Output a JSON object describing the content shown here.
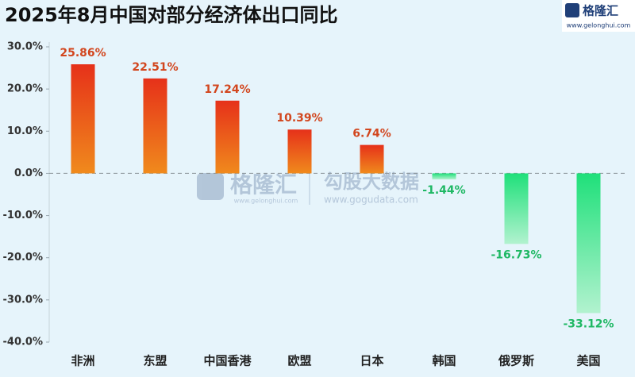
{
  "chart_data": {
    "type": "bar",
    "title": "2025年8月中国对部分经济体出口同比",
    "logo": {
      "name": "格隆汇",
      "url": "www.gelonghui.com"
    },
    "watermarks": [
      {
        "name": "格隆汇",
        "url": "www.gelonghui.com"
      },
      {
        "name": "勾股大数据",
        "url": "www.gogudata.com"
      }
    ],
    "categories": [
      "非洲",
      "东盟",
      "中国香港",
      "欧盟",
      "日本",
      "韩国",
      "俄罗斯",
      "美国"
    ],
    "values": [
      25.86,
      22.51,
      17.24,
      10.39,
      6.74,
      -1.44,
      -16.73,
      -33.12
    ],
    "value_labels": [
      "25.86%",
      "22.51%",
      "17.24%",
      "10.39%",
      "6.74%",
      "-1.44%",
      "-16.73%",
      "-33.12%"
    ],
    "positive_colors": [
      "#e6311a",
      "#f08a1c"
    ],
    "negative_colors": [
      "#1fe07a",
      "#b2f2cf"
    ],
    "positive_label_color": "#d2461e",
    "negative_label_color": "#1fb864",
    "ylim": [
      -40,
      30
    ],
    "yticks": [
      {
        "value": 30,
        "label": "30.0%"
      },
      {
        "value": 20,
        "label": "20.0%"
      },
      {
        "value": 10,
        "label": "10.0%"
      },
      {
        "value": 0,
        "label": "0.0%"
      },
      {
        "value": -10,
        "label": "-10.0%"
      },
      {
        "value": -20,
        "label": "-20.0%"
      },
      {
        "value": -30,
        "label": "-30.0%"
      },
      {
        "value": -40,
        "label": "-40.0%"
      }
    ]
  }
}
